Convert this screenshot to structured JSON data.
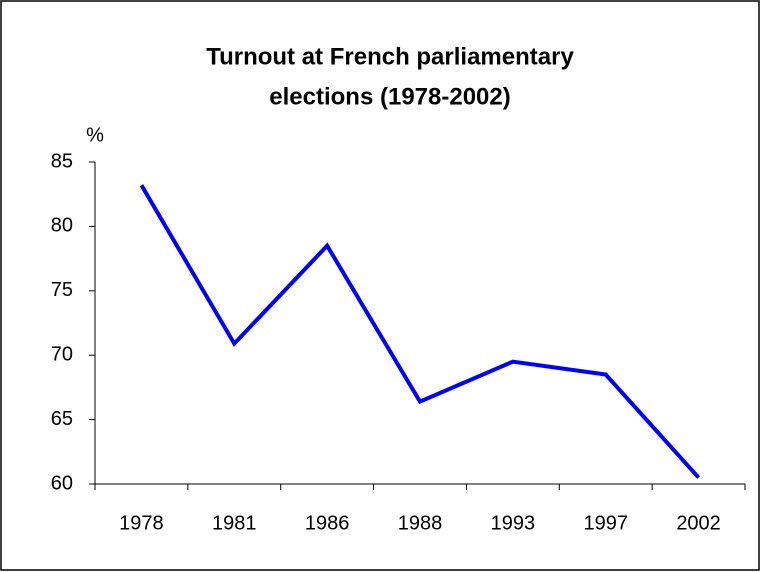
{
  "chart_data": {
    "type": "line",
    "title": [
      "Turnout at French parliamentary",
      "elections (1978-2002)"
    ],
    "y_label": "%",
    "categories": [
      "1978",
      "1981",
      "1986",
      "1988",
      "1993",
      "1997",
      "2002"
    ],
    "series": [
      {
        "name": "Turnout",
        "color": "#0000ff",
        "values": [
          83.2,
          70.9,
          78.5,
          66.4,
          69.5,
          68.5,
          60.5
        ]
      }
    ],
    "ylim": [
      60,
      85
    ],
    "yticks": [
      60,
      65,
      70,
      75,
      80,
      85
    ],
    "grid": false
  }
}
